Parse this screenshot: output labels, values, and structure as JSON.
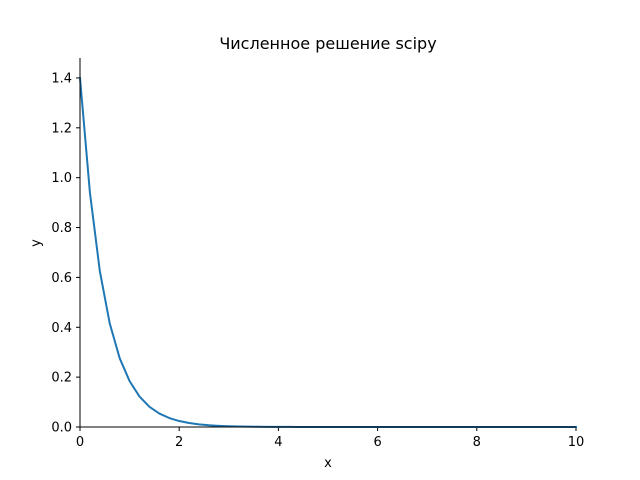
{
  "chart_data": {
    "type": "line",
    "title": "Численное решение scipy",
    "xlabel": "x",
    "ylabel": "y",
    "xlim": [
      0,
      10
    ],
    "ylim": [
      0,
      1.48
    ],
    "xticks": [
      0,
      2,
      4,
      6,
      8,
      10
    ],
    "xtick_labels": [
      "0",
      "2",
      "4",
      "6",
      "8",
      "10"
    ],
    "yticks": [
      0.0,
      0.2,
      0.4,
      0.6,
      0.8,
      1.0,
      1.2,
      1.4
    ],
    "ytick_labels": [
      "0.0",
      "0.2",
      "0.4",
      "0.6",
      "0.8",
      "1.0",
      "1.2",
      "1.4"
    ],
    "grid": false,
    "spines": [
      "left",
      "bottom"
    ],
    "line_color": "#1f77b4",
    "series": [
      {
        "x": [
          0.0,
          0.2,
          0.4,
          0.6,
          0.8,
          1.0,
          1.2,
          1.4,
          1.6,
          1.8,
          2.0,
          2.2,
          2.4,
          2.6,
          2.8,
          3.0,
          3.2,
          3.4,
          3.6,
          3.8,
          4.0,
          4.2,
          4.4,
          4.6,
          4.8,
          5.0,
          5.2,
          5.4,
          5.6,
          5.8,
          6.0,
          6.2,
          6.4,
          6.6,
          6.8,
          7.0,
          7.2,
          7.4,
          7.6,
          7.8,
          8.0,
          8.2,
          8.4,
          8.6,
          8.8,
          9.0,
          9.2,
          9.4,
          9.6,
          9.8,
          10.0
        ],
        "y": [
          1.4,
          0.94,
          0.625,
          0.415,
          0.276,
          0.184,
          0.122,
          0.081,
          0.054,
          0.036,
          0.024,
          0.016,
          0.0106,
          0.0071,
          0.0047,
          0.0031,
          0.0021,
          0.0014,
          0.0009,
          0.0006,
          0.0004,
          0.0003,
          0.0002,
          0.0001,
          0.0001,
          0.0,
          0.0,
          0.0,
          0.0,
          0.0,
          0.0,
          0.0,
          0.0,
          0.0,
          0.0,
          0.0,
          0.0,
          0.0,
          0.0,
          0.0,
          0.0,
          0.0,
          0.0,
          0.0,
          0.0,
          0.0,
          0.0,
          0.0,
          0.0,
          0.0,
          0.0
        ]
      }
    ]
  }
}
